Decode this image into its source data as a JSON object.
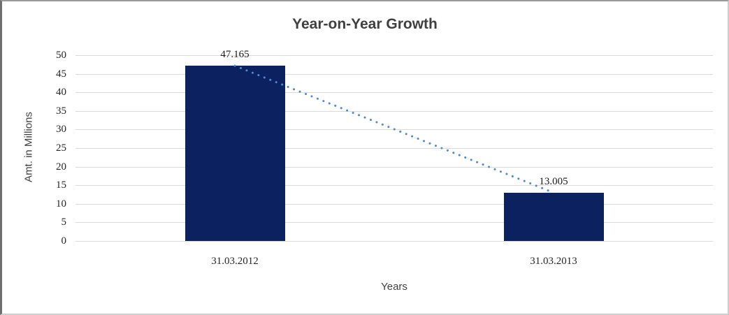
{
  "chart_data": {
    "type": "bar",
    "title": "Year-on-Year Growth",
    "xlabel": "Years",
    "ylabel": "Amt. in Millions",
    "categories": [
      "31.03.2012",
      "31.03.2013"
    ],
    "values": [
      47.165,
      13.005
    ],
    "data_labels": [
      "47.165",
      "13.005"
    ],
    "ylim": [
      0,
      50
    ],
    "ytick_step": 5,
    "grid": true,
    "legend": "none",
    "bar_color": "#0c2260",
    "gridline_color": "#d9d9d9",
    "title_color": "#404040",
    "trendline": {
      "type": "linear",
      "style": "dotted",
      "color": "#5189cc"
    }
  }
}
